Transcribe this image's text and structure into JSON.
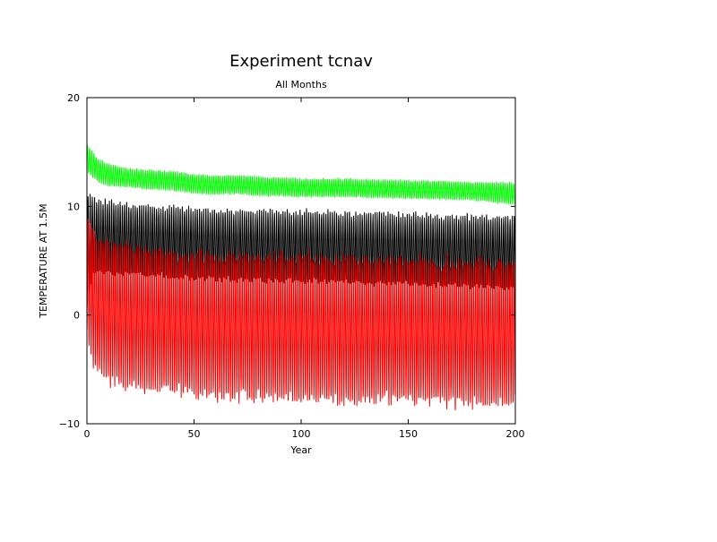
{
  "chart_data": {
    "type": "line",
    "title": "Experiment tcnav",
    "subtitle": "All Months",
    "xlabel": "Year",
    "ylabel": "TEMPERATURE AT 1.5M",
    "xlim": [
      0,
      200
    ],
    "ylim": [
      -10,
      20
    ],
    "x_ticks": [
      0,
      50,
      100,
      150,
      200
    ],
    "y_ticks": [
      -10,
      0,
      10,
      20
    ],
    "x_tick_labels": [
      "0",
      "50",
      "100",
      "150",
      "200"
    ],
    "y_tick_labels": [
      "−10",
      "0",
      "10",
      "20"
    ],
    "grid": false,
    "legend": "none",
    "series": [
      {
        "color": "#00ff00",
        "description": "annual oscillation, upper band",
        "envelope": {
          "x": [
            0,
            5,
            10,
            20,
            30,
            40,
            50,
            60,
            70,
            80,
            90,
            100,
            120,
            140,
            160,
            180,
            190,
            200
          ],
          "max": [
            15.8,
            14.5,
            14.0,
            13.5,
            13.4,
            13.3,
            13.0,
            12.9,
            12.9,
            12.8,
            12.7,
            12.6,
            12.6,
            12.5,
            12.4,
            12.3,
            12.3,
            12.2
          ],
          "min": [
            13.0,
            12.2,
            11.8,
            11.7,
            11.5,
            11.4,
            11.1,
            11.0,
            11.1,
            10.9,
            10.9,
            10.8,
            10.8,
            10.7,
            10.6,
            10.5,
            10.3,
            10.1
          ]
        }
      },
      {
        "color": "#000000",
        "description": "annual oscillation, middle band",
        "envelope": {
          "x": [
            0,
            3,
            10,
            20,
            30,
            40,
            50,
            60,
            80,
            100,
            120,
            140,
            160,
            180,
            200
          ],
          "max": [
            12.0,
            11.0,
            10.7,
            10.4,
            10.3,
            10.2,
            10.0,
            9.9,
            9.8,
            9.8,
            9.7,
            9.6,
            9.5,
            9.4,
            9.3
          ],
          "min": [
            0.0,
            3.5,
            3.6,
            3.4,
            3.3,
            3.2,
            3.1,
            3.0,
            2.9,
            2.8,
            2.7,
            2.6,
            2.5,
            2.4,
            2.3
          ]
        }
      },
      {
        "color": "#ff0000",
        "description": "annual oscillation, lower band",
        "envelope": {
          "x": [
            0,
            3,
            10,
            20,
            30,
            40,
            50,
            60,
            80,
            100,
            120,
            140,
            160,
            180,
            200
          ],
          "max": [
            9.5,
            8.0,
            7.2,
            6.8,
            6.5,
            6.4,
            6.2,
            6.1,
            6.0,
            5.9,
            5.8,
            5.7,
            5.6,
            5.5,
            5.4
          ],
          "min": [
            -2.0,
            -5.0,
            -6.5,
            -7.2,
            -7.5,
            -7.7,
            -7.9,
            -8.0,
            -8.2,
            -8.4,
            -8.5,
            -8.5,
            -8.6,
            -8.7,
            -8.8
          ]
        }
      }
    ]
  }
}
